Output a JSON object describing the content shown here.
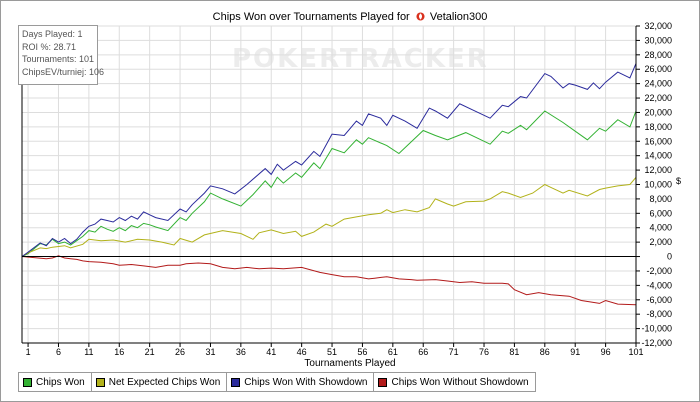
{
  "title": {
    "prefix": "Chips Won over Tournaments Played for",
    "player": "Vetalion300"
  },
  "watermark": "POKERTRACKER",
  "stats_box": [
    "Days Played: 1",
    "ROI %: 28.71",
    "Tournaments: 101",
    "ChipsEV/turniej: 106"
  ],
  "y_unit": "$",
  "legend_items": [
    {
      "label": "Chips Won",
      "color": "#33b233"
    },
    {
      "label": "Net Expected Chips Won",
      "color": "#b2b21a"
    },
    {
      "label": "Chips Won With Showdown",
      "color": "#2b2b9c"
    },
    {
      "label": "Chips Won Without Showdown",
      "color": "#b21a1a"
    }
  ],
  "colors": {
    "grid": "#dddddd",
    "zero_line": "#000000"
  },
  "chart_data": {
    "type": "line",
    "title": "Chips Won over Tournaments Played for Vetalion300",
    "xlabel": "Tournaments Played",
    "ylabel": "",
    "xlim": [
      1,
      101
    ],
    "ylim": [
      -12000,
      32000
    ],
    "x_ticks": [
      1,
      6,
      11,
      16,
      21,
      26,
      31,
      36,
      41,
      46,
      51,
      56,
      61,
      66,
      71,
      76,
      81,
      86,
      91,
      96,
      101
    ],
    "y_ticks": [
      -12000,
      -10000,
      -8000,
      -6000,
      -4000,
      -2000,
      0,
      2000,
      4000,
      6000,
      8000,
      10000,
      12000,
      14000,
      16000,
      18000,
      20000,
      22000,
      24000,
      26000,
      28000,
      30000,
      32000
    ],
    "y_tick_labels": [
      "-12,000",
      "-10,000",
      "-8,000",
      "-6,000",
      "-4,000",
      "-2,000",
      "0",
      "2,000",
      "4,000",
      "6,000",
      "8,000",
      "10,000",
      "12,000",
      "14,000",
      "16,000",
      "18,000",
      "20,000",
      "22,000",
      "24,000",
      "26,000",
      "28,000",
      "30,000",
      "32,000"
    ],
    "grid": true,
    "legend": "bottom",
    "series": [
      {
        "name": "Chips Won",
        "color": "#33b233",
        "points": [
          [
            0,
            0
          ],
          [
            1,
            400
          ],
          [
            3,
            1800
          ],
          [
            4,
            1600
          ],
          [
            5,
            2400
          ],
          [
            6,
            1800
          ],
          [
            7,
            2000
          ],
          [
            8,
            1600
          ],
          [
            9,
            2200
          ],
          [
            10,
            2800
          ],
          [
            11,
            3600
          ],
          [
            12,
            3400
          ],
          [
            13,
            4200
          ],
          [
            14,
            3800
          ],
          [
            15,
            3500
          ],
          [
            16,
            4000
          ],
          [
            17,
            3600
          ],
          [
            18,
            4300
          ],
          [
            19,
            4000
          ],
          [
            20,
            4600
          ],
          [
            21,
            4400
          ],
          [
            22,
            4100
          ],
          [
            24,
            3600
          ],
          [
            26,
            5400
          ],
          [
            27,
            5000
          ],
          [
            28,
            6000
          ],
          [
            30,
            7600
          ],
          [
            31,
            8800
          ],
          [
            33,
            8000
          ],
          [
            36,
            7000
          ],
          [
            38,
            8600
          ],
          [
            40,
            10500
          ],
          [
            41,
            9600
          ],
          [
            42,
            11000
          ],
          [
            43,
            10200
          ],
          [
            45,
            11600
          ],
          [
            46,
            11000
          ],
          [
            48,
            13000
          ],
          [
            49,
            12200
          ],
          [
            51,
            15000
          ],
          [
            53,
            14400
          ],
          [
            55,
            16200
          ],
          [
            56,
            15600
          ],
          [
            57,
            16500
          ],
          [
            60,
            15400
          ],
          [
            62,
            14300
          ],
          [
            66,
            17500
          ],
          [
            68,
            16800
          ],
          [
            70,
            16200
          ],
          [
            73,
            17200
          ],
          [
            77,
            15600
          ],
          [
            79,
            17400
          ],
          [
            80,
            17100
          ],
          [
            82,
            18200
          ],
          [
            83,
            17600
          ],
          [
            86,
            20200
          ],
          [
            89,
            18600
          ],
          [
            91,
            17400
          ],
          [
            93,
            16200
          ],
          [
            95,
            17800
          ],
          [
            96,
            17400
          ],
          [
            98,
            19000
          ],
          [
            100,
            18000
          ],
          [
            101,
            20200
          ]
        ]
      },
      {
        "name": "Net Expected Chips Won",
        "color": "#b2b21a",
        "points": [
          [
            0,
            0
          ],
          [
            1,
            500
          ],
          [
            3,
            1200
          ],
          [
            4,
            1100
          ],
          [
            5,
            1300
          ],
          [
            7,
            1500
          ],
          [
            8,
            1200
          ],
          [
            10,
            1700
          ],
          [
            11,
            2400
          ],
          [
            13,
            2200
          ],
          [
            15,
            2300
          ],
          [
            17,
            2000
          ],
          [
            19,
            2400
          ],
          [
            21,
            2300
          ],
          [
            23,
            2000
          ],
          [
            25,
            1600
          ],
          [
            26,
            2500
          ],
          [
            28,
            2000
          ],
          [
            30,
            3000
          ],
          [
            33,
            3600
          ],
          [
            36,
            3200
          ],
          [
            38,
            2400
          ],
          [
            39,
            3300
          ],
          [
            41,
            3700
          ],
          [
            43,
            3200
          ],
          [
            45,
            3500
          ],
          [
            46,
            2800
          ],
          [
            48,
            3400
          ],
          [
            50,
            4500
          ],
          [
            51,
            4200
          ],
          [
            53,
            5200
          ],
          [
            55,
            5500
          ],
          [
            57,
            5800
          ],
          [
            59,
            6000
          ],
          [
            60,
            6500
          ],
          [
            61,
            6100
          ],
          [
            63,
            6500
          ],
          [
            65,
            6200
          ],
          [
            67,
            6800
          ],
          [
            68,
            8000
          ],
          [
            70,
            7300
          ],
          [
            71,
            7000
          ],
          [
            73,
            7600
          ],
          [
            76,
            7700
          ],
          [
            77,
            8000
          ],
          [
            78,
            8500
          ],
          [
            79,
            9000
          ],
          [
            80,
            8800
          ],
          [
            82,
            8200
          ],
          [
            84,
            8800
          ],
          [
            86,
            10000
          ],
          [
            87,
            9600
          ],
          [
            89,
            8800
          ],
          [
            90,
            9200
          ],
          [
            93,
            8400
          ],
          [
            95,
            9300
          ],
          [
            96,
            9500
          ],
          [
            98,
            9800
          ],
          [
            100,
            10000
          ],
          [
            101,
            11000
          ]
        ]
      },
      {
        "name": "Chips Won With Showdown",
        "color": "#2b2b9c",
        "points": [
          [
            0,
            0
          ],
          [
            1,
            600
          ],
          [
            3,
            1900
          ],
          [
            4,
            1500
          ],
          [
            5,
            2500
          ],
          [
            6,
            2000
          ],
          [
            7,
            2500
          ],
          [
            8,
            1800
          ],
          [
            9,
            2400
          ],
          [
            10,
            3400
          ],
          [
            11,
            4200
          ],
          [
            12,
            4500
          ],
          [
            13,
            5200
          ],
          [
            14,
            5000
          ],
          [
            15,
            4800
          ],
          [
            16,
            5400
          ],
          [
            17,
            5000
          ],
          [
            18,
            5600
          ],
          [
            19,
            5200
          ],
          [
            20,
            6200
          ],
          [
            21,
            5800
          ],
          [
            22,
            5400
          ],
          [
            24,
            5000
          ],
          [
            26,
            6600
          ],
          [
            27,
            6200
          ],
          [
            28,
            7200
          ],
          [
            30,
            8800
          ],
          [
            31,
            9800
          ],
          [
            33,
            9400
          ],
          [
            35,
            8700
          ],
          [
            37,
            10000
          ],
          [
            40,
            12200
          ],
          [
            41,
            11400
          ],
          [
            42,
            12800
          ],
          [
            43,
            12000
          ],
          [
            45,
            13200
          ],
          [
            46,
            12700
          ],
          [
            48,
            14600
          ],
          [
            49,
            13900
          ],
          [
            51,
            17000
          ],
          [
            53,
            16800
          ],
          [
            55,
            18800
          ],
          [
            56,
            18200
          ],
          [
            57,
            19800
          ],
          [
            59,
            19200
          ],
          [
            60,
            18200
          ],
          [
            61,
            19600
          ],
          [
            63,
            18800
          ],
          [
            65,
            17800
          ],
          [
            67,
            20600
          ],
          [
            68,
            20200
          ],
          [
            70,
            19200
          ],
          [
            72,
            21200
          ],
          [
            74,
            20400
          ],
          [
            77,
            19200
          ],
          [
            79,
            21000
          ],
          [
            80,
            20800
          ],
          [
            82,
            22200
          ],
          [
            83,
            22000
          ],
          [
            86,
            25400
          ],
          [
            87,
            25000
          ],
          [
            89,
            23400
          ],
          [
            90,
            24000
          ],
          [
            91,
            23800
          ],
          [
            93,
            23200
          ],
          [
            94,
            24100
          ],
          [
            95,
            23300
          ],
          [
            96,
            24200
          ],
          [
            98,
            25600
          ],
          [
            100,
            24800
          ],
          [
            101,
            26800
          ]
        ]
      },
      {
        "name": "Chips Won Without Showdown",
        "color": "#b21a1a",
        "points": [
          [
            0,
            0
          ],
          [
            4,
            -300
          ],
          [
            5,
            -200
          ],
          [
            6,
            100
          ],
          [
            7,
            -200
          ],
          [
            8,
            -300
          ],
          [
            9,
            -400
          ],
          [
            10,
            -600
          ],
          [
            11,
            -700
          ],
          [
            13,
            -800
          ],
          [
            15,
            -1000
          ],
          [
            16,
            -1200
          ],
          [
            18,
            -1100
          ],
          [
            20,
            -1300
          ],
          [
            22,
            -1500
          ],
          [
            24,
            -1200
          ],
          [
            26,
            -1200
          ],
          [
            27,
            -1000
          ],
          [
            29,
            -900
          ],
          [
            31,
            -1000
          ],
          [
            33,
            -1500
          ],
          [
            35,
            -1700
          ],
          [
            37,
            -1500
          ],
          [
            39,
            -1700
          ],
          [
            41,
            -1600
          ],
          [
            43,
            -1700
          ],
          [
            46,
            -1500
          ],
          [
            49,
            -2200
          ],
          [
            51,
            -2500
          ],
          [
            53,
            -2800
          ],
          [
            55,
            -2800
          ],
          [
            57,
            -3100
          ],
          [
            58,
            -3000
          ],
          [
            60,
            -2800
          ],
          [
            62,
            -3100
          ],
          [
            64,
            -3200
          ],
          [
            65,
            -3300
          ],
          [
            68,
            -3200
          ],
          [
            70,
            -3400
          ],
          [
            72,
            -3600
          ],
          [
            74,
            -3500
          ],
          [
            76,
            -3700
          ],
          [
            79,
            -3700
          ],
          [
            80,
            -3800
          ],
          [
            81,
            -4600
          ],
          [
            83,
            -5300
          ],
          [
            85,
            -5000
          ],
          [
            87,
            -5300
          ],
          [
            90,
            -5500
          ],
          [
            92,
            -6100
          ],
          [
            95,
            -6500
          ],
          [
            96,
            -6100
          ],
          [
            98,
            -6600
          ],
          [
            101,
            -6700
          ]
        ]
      }
    ]
  }
}
